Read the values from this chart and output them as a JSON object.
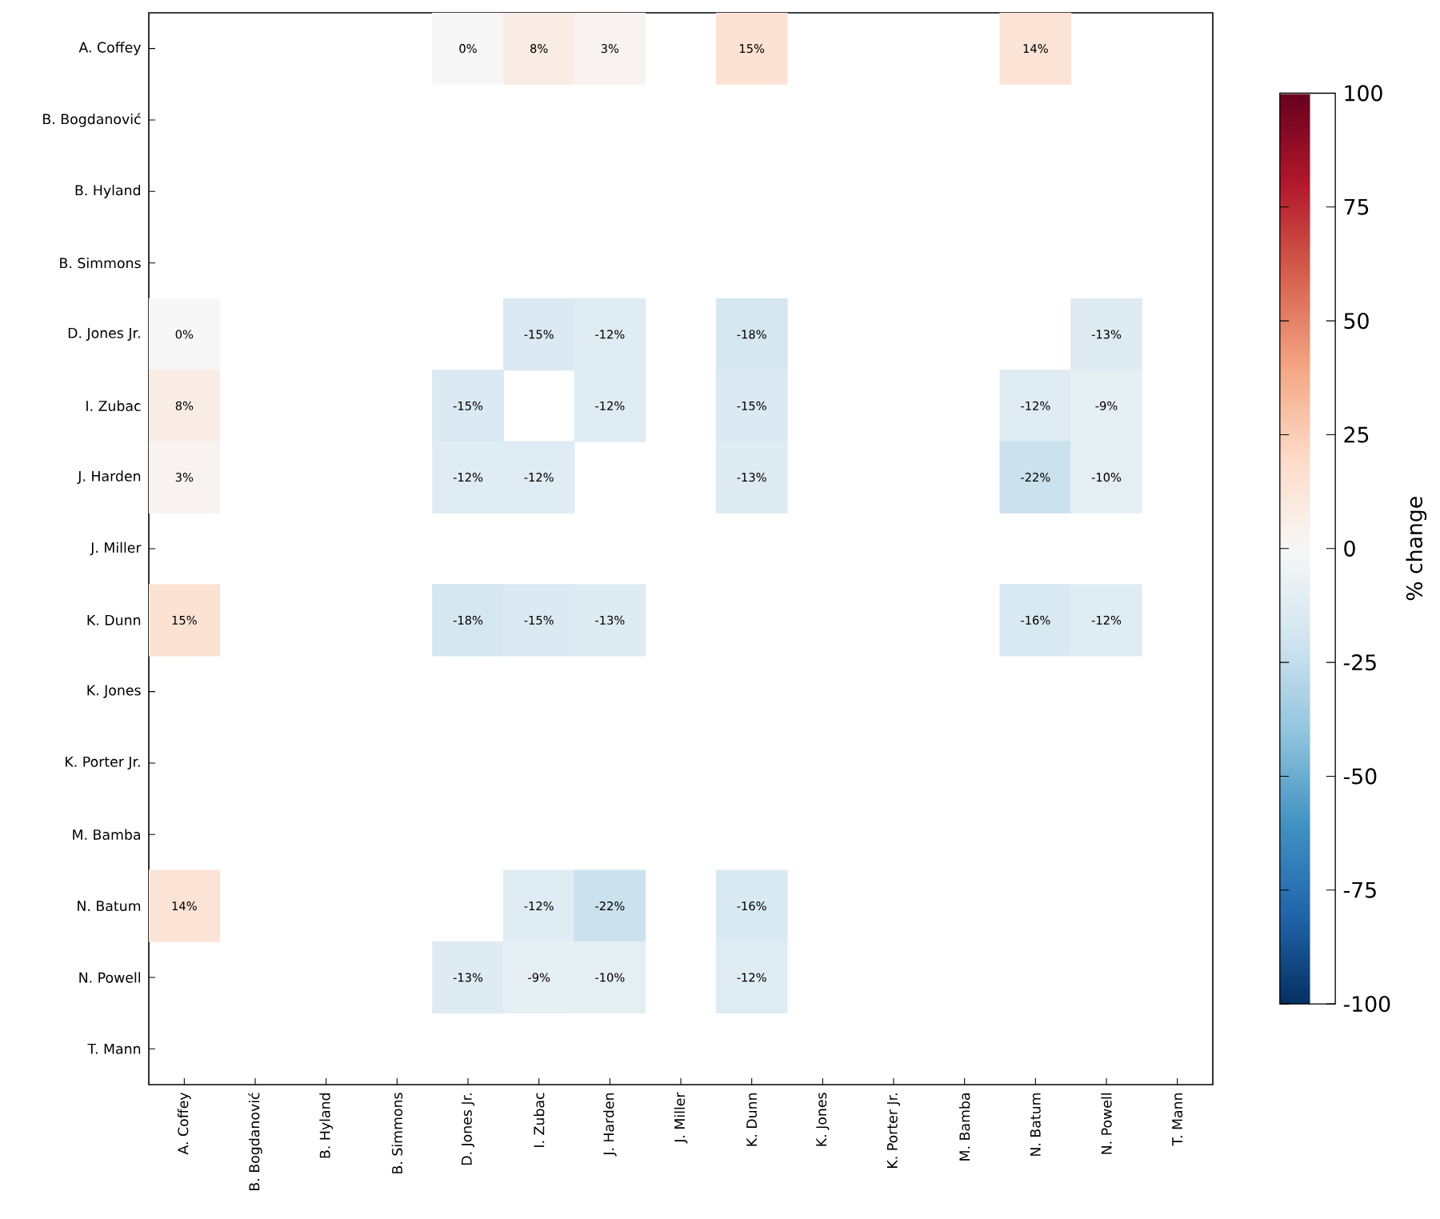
{
  "chart_data": {
    "type": "heatmap",
    "categories": [
      "A. Coffey",
      "B. Bogdanović",
      "B. Hyland",
      "B. Simmons",
      "D. Jones Jr.",
      "I. Zubac",
      "J. Harden",
      "J. Miller",
      "K. Dunn",
      "K. Jones",
      "K. Porter Jr.",
      "M. Bamba",
      "N. Batum",
      "N. Powell",
      "T. Mann"
    ],
    "y_categories": [
      "A. Coffey",
      "B. Bogdanović",
      "B. Hyland",
      "B. Simmons",
      "D. Jones Jr.",
      "I. Zubac",
      "J. Harden",
      "J. Miller",
      "K. Dunn",
      "K. Jones",
      "K. Porter Jr.",
      "M. Bamba",
      "N. Batum",
      "N. Powell",
      "T. Mann"
    ],
    "cells": [
      [
        null,
        null,
        null,
        null,
        0,
        8,
        3,
        null,
        15,
        null,
        null,
        null,
        14,
        null,
        null
      ],
      [
        null,
        null,
        null,
        null,
        null,
        null,
        null,
        null,
        null,
        null,
        null,
        null,
        null,
        null,
        null
      ],
      [
        null,
        null,
        null,
        null,
        null,
        null,
        null,
        null,
        null,
        null,
        null,
        null,
        null,
        null,
        null
      ],
      [
        null,
        null,
        null,
        null,
        null,
        null,
        null,
        null,
        null,
        null,
        null,
        null,
        null,
        null,
        null
      ],
      [
        0,
        null,
        null,
        null,
        null,
        -15,
        -12,
        null,
        -18,
        null,
        null,
        null,
        null,
        -13,
        null
      ],
      [
        8,
        null,
        null,
        null,
        -15,
        null,
        -12,
        null,
        -15,
        null,
        null,
        null,
        -12,
        -9,
        null
      ],
      [
        3,
        null,
        null,
        null,
        -12,
        -12,
        null,
        null,
        -13,
        null,
        null,
        null,
        -22,
        -10,
        null
      ],
      [
        null,
        null,
        null,
        null,
        null,
        null,
        null,
        null,
        null,
        null,
        null,
        null,
        null,
        null,
        null
      ],
      [
        15,
        null,
        null,
        null,
        -18,
        -15,
        -13,
        null,
        null,
        null,
        null,
        null,
        -16,
        -12,
        null
      ],
      [
        null,
        null,
        null,
        null,
        null,
        null,
        null,
        null,
        null,
        null,
        null,
        null,
        null,
        null,
        null
      ],
      [
        null,
        null,
        null,
        null,
        null,
        null,
        null,
        null,
        null,
        null,
        null,
        null,
        null,
        null,
        null
      ],
      [
        null,
        null,
        null,
        null,
        null,
        null,
        null,
        null,
        null,
        null,
        null,
        null,
        null,
        null,
        null
      ],
      [
        14,
        null,
        null,
        null,
        null,
        -12,
        -22,
        null,
        -16,
        null,
        null,
        null,
        null,
        null,
        null
      ],
      [
        null,
        null,
        null,
        null,
        -13,
        -9,
        -10,
        null,
        -12,
        null,
        null,
        null,
        null,
        null,
        null
      ],
      [
        null,
        null,
        null,
        null,
        null,
        null,
        null,
        null,
        null,
        null,
        null,
        null,
        null,
        null,
        null
      ]
    ],
    "cell_labels": [
      [
        null,
        null,
        null,
        null,
        "0%",
        "8%",
        "3%",
        null,
        "15%",
        null,
        null,
        null,
        "14%",
        null,
        null
      ],
      [
        null,
        null,
        null,
        null,
        null,
        null,
        null,
        null,
        null,
        null,
        null,
        null,
        null,
        null,
        null
      ],
      [
        null,
        null,
        null,
        null,
        null,
        null,
        null,
        null,
        null,
        null,
        null,
        null,
        null,
        null,
        null
      ],
      [
        null,
        null,
        null,
        null,
        null,
        null,
        null,
        null,
        null,
        null,
        null,
        null,
        null,
        null,
        null
      ],
      [
        "0%",
        null,
        null,
        null,
        null,
        "-15%",
        "-12%",
        null,
        "-18%",
        null,
        null,
        null,
        null,
        "-13%",
        null
      ],
      [
        "8%",
        null,
        null,
        null,
        "-15%",
        null,
        "-12%",
        null,
        "-15%",
        null,
        null,
        null,
        "-12%",
        "-9%",
        null
      ],
      [
        "3%",
        null,
        null,
        null,
        "-12%",
        "-12%",
        null,
        null,
        "-13%",
        null,
        null,
        null,
        "-22%",
        "-10%",
        null
      ],
      [
        null,
        null,
        null,
        null,
        null,
        null,
        null,
        null,
        null,
        null,
        null,
        null,
        null,
        null,
        null
      ],
      [
        "15%",
        null,
        null,
        null,
        "-18%",
        "-15%",
        "-13%",
        null,
        null,
        null,
        null,
        null,
        "-16%",
        "-12%",
        null
      ],
      [
        null,
        null,
        null,
        null,
        null,
        null,
        null,
        null,
        null,
        null,
        null,
        null,
        null,
        null,
        null
      ],
      [
        null,
        null,
        null,
        null,
        null,
        null,
        null,
        null,
        null,
        null,
        null,
        null,
        null,
        null,
        null
      ],
      [
        null,
        null,
        null,
        null,
        null,
        null,
        null,
        null,
        null,
        null,
        null,
        null,
        null,
        null,
        null
      ],
      [
        "14%",
        null,
        null,
        null,
        null,
        "-12%",
        "-22%",
        null,
        "-16%",
        null,
        null,
        null,
        null,
        null,
        null
      ],
      [
        null,
        null,
        null,
        null,
        "-13%",
        "-9%",
        "-10%",
        null,
        "-12%",
        null,
        null,
        null,
        null,
        null,
        null
      ],
      [
        null,
        null,
        null,
        null,
        null,
        null,
        null,
        null,
        null,
        null,
        null,
        null,
        null,
        null,
        null
      ]
    ],
    "clim": [
      -100,
      100
    ],
    "cticks": [
      -100,
      -75,
      -50,
      -25,
      0,
      25,
      50,
      75,
      100
    ],
    "clabel": "% change"
  }
}
